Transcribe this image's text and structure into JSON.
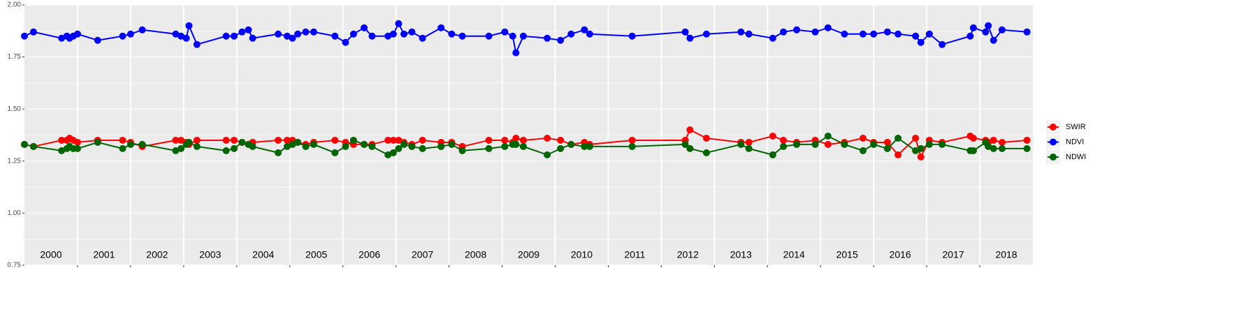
{
  "chart_data": {
    "type": "line",
    "x": [
      2000.0,
      2000.17,
      2000.7,
      2000.8,
      2000.85,
      2000.92,
      2001.0,
      2001.38,
      2001.85,
      2002.0,
      2002.22,
      2002.85,
      2002.95,
      2003.05,
      2003.1,
      2003.25,
      2003.8,
      2003.95,
      2004.1,
      2004.22,
      2004.3,
      2004.78,
      2004.95,
      2005.05,
      2005.15,
      2005.3,
      2005.45,
      2005.85,
      2006.05,
      2006.2,
      2006.4,
      2006.55,
      2006.85,
      2006.95,
      2007.05,
      2007.15,
      2007.3,
      2007.5,
      2007.85,
      2008.05,
      2008.25,
      2008.75,
      2009.05,
      2009.2,
      2009.26,
      2009.4,
      2009.85,
      2010.1,
      2010.3,
      2010.55,
      2010.65,
      2011.45,
      2012.45,
      2012.54,
      2012.85,
      2013.5,
      2013.65,
      2014.1,
      2014.3,
      2014.55,
      2014.9,
      2015.14,
      2015.45,
      2015.8,
      2016.0,
      2016.26,
      2016.46,
      2016.79,
      2016.89,
      2017.05,
      2017.29,
      2017.82,
      2017.88,
      2018.11,
      2018.16,
      2018.26,
      2018.42,
      2018.89
    ],
    "series": [
      {
        "name": "SWIR",
        "color": "#ff0000",
        "values": [
          1.33,
          1.32,
          1.35,
          1.35,
          1.36,
          1.35,
          1.34,
          1.35,
          1.35,
          1.34,
          1.32,
          1.35,
          1.35,
          1.34,
          1.33,
          1.35,
          1.35,
          1.35,
          1.34,
          1.33,
          1.34,
          1.35,
          1.35,
          1.35,
          1.34,
          1.33,
          1.34,
          1.35,
          1.34,
          1.33,
          1.33,
          1.33,
          1.35,
          1.35,
          1.35,
          1.34,
          1.33,
          1.35,
          1.34,
          1.34,
          1.32,
          1.35,
          1.35,
          1.34,
          1.36,
          1.35,
          1.36,
          1.35,
          1.33,
          1.34,
          1.33,
          1.35,
          1.35,
          1.4,
          1.36,
          1.34,
          1.34,
          1.37,
          1.35,
          1.34,
          1.35,
          1.33,
          1.34,
          1.36,
          1.34,
          1.34,
          1.28,
          1.36,
          1.27,
          1.35,
          1.34,
          1.37,
          1.36,
          1.35,
          1.34,
          1.35,
          1.34,
          1.35
        ]
      },
      {
        "name": "NDVI",
        "color": "#0000ff",
        "values": [
          1.85,
          1.87,
          1.84,
          1.85,
          1.84,
          1.85,
          1.86,
          1.83,
          1.85,
          1.86,
          1.88,
          1.86,
          1.85,
          1.84,
          1.9,
          1.81,
          1.85,
          1.85,
          1.87,
          1.88,
          1.84,
          1.86,
          1.85,
          1.84,
          1.86,
          1.87,
          1.87,
          1.85,
          1.82,
          1.86,
          1.89,
          1.85,
          1.85,
          1.86,
          1.91,
          1.86,
          1.87,
          1.84,
          1.89,
          1.86,
          1.85,
          1.85,
          1.87,
          1.85,
          1.77,
          1.85,
          1.84,
          1.83,
          1.86,
          1.88,
          1.86,
          1.85,
          1.87,
          1.84,
          1.86,
          1.87,
          1.86,
          1.84,
          1.87,
          1.88,
          1.87,
          1.89,
          1.86,
          1.86,
          1.86,
          1.87,
          1.86,
          1.85,
          1.82,
          1.86,
          1.81,
          1.85,
          1.89,
          1.87,
          1.9,
          1.83,
          1.88,
          1.87
        ]
      },
      {
        "name": "NDWI",
        "color": "#006400",
        "values": [
          1.33,
          1.32,
          1.3,
          1.31,
          1.32,
          1.31,
          1.31,
          1.34,
          1.31,
          1.33,
          1.33,
          1.3,
          1.31,
          1.33,
          1.34,
          1.32,
          1.3,
          1.31,
          1.34,
          1.33,
          1.32,
          1.29,
          1.32,
          1.33,
          1.34,
          1.32,
          1.33,
          1.29,
          1.32,
          1.35,
          1.33,
          1.32,
          1.28,
          1.29,
          1.31,
          1.33,
          1.32,
          1.31,
          1.32,
          1.33,
          1.3,
          1.31,
          1.32,
          1.33,
          1.33,
          1.32,
          1.28,
          1.31,
          1.33,
          1.32,
          1.32,
          1.32,
          1.33,
          1.31,
          1.29,
          1.33,
          1.31,
          1.28,
          1.32,
          1.33,
          1.33,
          1.37,
          1.33,
          1.3,
          1.33,
          1.31,
          1.36,
          1.3,
          1.31,
          1.33,
          1.33,
          1.3,
          1.3,
          1.34,
          1.32,
          1.31,
          1.31,
          1.31
        ]
      }
    ],
    "xlim": [
      2000,
      2019
    ],
    "xticks": [
      2001,
      2002,
      2003,
      2004,
      2005,
      2006,
      2007,
      2008,
      2009,
      2010,
      2011,
      2012,
      2013,
      2014,
      2015,
      2016,
      2017,
      2018
    ],
    "year_labels": [
      {
        "value": 2000.5,
        "label": "2000"
      },
      {
        "value": 2001.5,
        "label": "2001"
      },
      {
        "value": 2002.5,
        "label": "2002"
      },
      {
        "value": 2003.5,
        "label": "2003"
      },
      {
        "value": 2004.5,
        "label": "2004"
      },
      {
        "value": 2005.5,
        "label": "2005"
      },
      {
        "value": 2006.5,
        "label": "2006"
      },
      {
        "value": 2007.5,
        "label": "2007"
      },
      {
        "value": 2008.5,
        "label": "2008"
      },
      {
        "value": 2009.5,
        "label": "2009"
      },
      {
        "value": 2010.5,
        "label": "2010"
      },
      {
        "value": 2011.5,
        "label": "2011"
      },
      {
        "value": 2012.5,
        "label": "2012"
      },
      {
        "value": 2013.5,
        "label": "2013"
      },
      {
        "value": 2014.5,
        "label": "2014"
      },
      {
        "value": 2015.5,
        "label": "2015"
      },
      {
        "value": 2016.5,
        "label": "2016"
      },
      {
        "value": 2017.5,
        "label": "2017"
      },
      {
        "value": 2018.5,
        "label": "2018"
      }
    ],
    "ylim": [
      0.75,
      2.0
    ],
    "yticks": [
      {
        "value": 0.75,
        "label": "0.75"
      },
      {
        "value": 1.0,
        "label": "1.00"
      },
      {
        "value": 1.25,
        "label": "1.25"
      },
      {
        "value": 1.5,
        "label": "1.50"
      },
      {
        "value": 1.75,
        "label": "1.75"
      },
      {
        "value": 2.0,
        "label": "2.00"
      }
    ],
    "grid": true,
    "legend": "right"
  }
}
